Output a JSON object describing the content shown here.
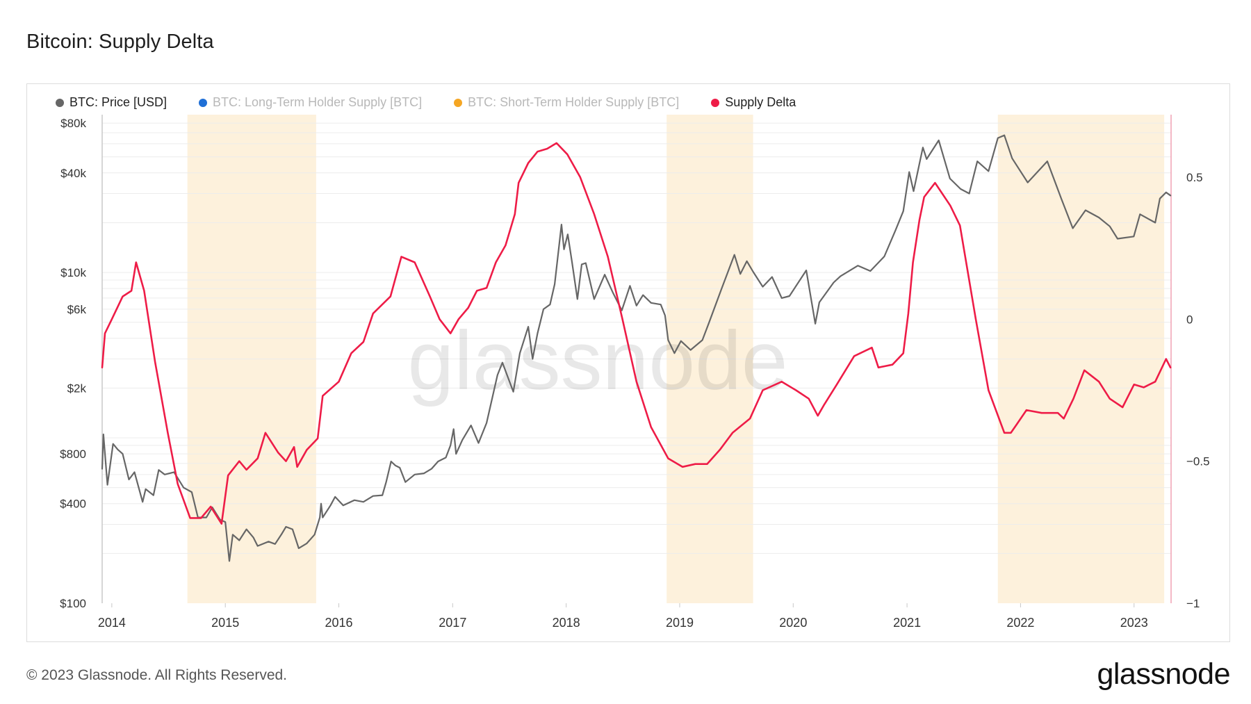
{
  "page": {
    "title": "Bitcoin: Supply Delta",
    "footer": "© 2023 Glassnode. All Rights Reserved.",
    "logo": "glassnode",
    "watermark": "glassnode"
  },
  "chart_data": {
    "type": "line",
    "title": "Bitcoin: Supply Delta",
    "x_ticks": [
      "2014",
      "2015",
      "2016",
      "2017",
      "2018",
      "2019",
      "2020",
      "2021",
      "2022",
      "2023"
    ],
    "x_range": [
      "2013-12-01",
      "2023-04-30"
    ],
    "y_left": {
      "scale": "log",
      "range": [
        100,
        90000
      ],
      "ticks": [
        {
          "value": 100,
          "label": "$100"
        },
        {
          "value": 400,
          "label": "$400"
        },
        {
          "value": 800,
          "label": "$800"
        },
        {
          "value": 2000,
          "label": "$2k"
        },
        {
          "value": 6000,
          "label": "$6k"
        },
        {
          "value": 10000,
          "label": "$10k"
        },
        {
          "value": 40000,
          "label": "$40k"
        },
        {
          "value": 80000,
          "label": "$80k"
        }
      ]
    },
    "y_right": {
      "scale": "linear",
      "range": [
        -1,
        0.72
      ],
      "ticks": [
        {
          "value": 0.5,
          "label": "0.5"
        },
        {
          "value": 0,
          "label": "0"
        },
        {
          "value": -0.5,
          "label": "−0.5"
        },
        {
          "value": -1,
          "label": "−1"
        }
      ]
    },
    "legend_position": "top-left",
    "grid": true,
    "shaded_periods": [
      {
        "start": "2014-09-01",
        "end": "2015-10-20"
      },
      {
        "start": "2018-11-20",
        "end": "2019-08-25"
      },
      {
        "start": "2021-10-20",
        "end": "2023-04-08"
      }
    ],
    "series": [
      {
        "name": "BTC: Price [USD]",
        "color": "#666666",
        "axis": "left",
        "visible": true,
        "points": [
          [
            "2013-12-01",
            650
          ],
          [
            "2013-12-05",
            1050
          ],
          [
            "2013-12-18",
            520
          ],
          [
            "2014-01-05",
            920
          ],
          [
            "2014-01-20",
            850
          ],
          [
            "2014-02-05",
            800
          ],
          [
            "2014-02-25",
            560
          ],
          [
            "2014-03-15",
            620
          ],
          [
            "2014-04-10",
            410
          ],
          [
            "2014-04-20",
            490
          ],
          [
            "2014-05-15",
            450
          ],
          [
            "2014-06-01",
            640
          ],
          [
            "2014-06-20",
            600
          ],
          [
            "2014-07-20",
            620
          ],
          [
            "2014-08-20",
            500
          ],
          [
            "2014-09-15",
            470
          ],
          [
            "2014-10-05",
            330
          ],
          [
            "2014-11-01",
            330
          ],
          [
            "2014-11-20",
            380
          ],
          [
            "2014-12-15",
            320
          ],
          [
            "2015-01-01",
            310
          ],
          [
            "2015-01-14",
            180
          ],
          [
            "2015-01-25",
            260
          ],
          [
            "2015-02-15",
            240
          ],
          [
            "2015-03-10",
            280
          ],
          [
            "2015-04-01",
            250
          ],
          [
            "2015-04-15",
            222
          ],
          [
            "2015-05-20",
            236
          ],
          [
            "2015-06-10",
            228
          ],
          [
            "2015-07-01",
            262
          ],
          [
            "2015-07-15",
            290
          ],
          [
            "2015-08-05",
            280
          ],
          [
            "2015-08-25",
            215
          ],
          [
            "2015-09-20",
            230
          ],
          [
            "2015-10-15",
            260
          ],
          [
            "2015-11-01",
            330
          ],
          [
            "2015-11-05",
            400
          ],
          [
            "2015-11-10",
            330
          ],
          [
            "2015-12-05",
            390
          ],
          [
            "2015-12-20",
            440
          ],
          [
            "2016-01-15",
            390
          ],
          [
            "2016-02-20",
            420
          ],
          [
            "2016-03-20",
            410
          ],
          [
            "2016-04-20",
            445
          ],
          [
            "2016-05-20",
            450
          ],
          [
            "2016-06-01",
            540
          ],
          [
            "2016-06-17",
            720
          ],
          [
            "2016-07-01",
            680
          ],
          [
            "2016-07-15",
            660
          ],
          [
            "2016-08-02",
            540
          ],
          [
            "2016-09-01",
            600
          ],
          [
            "2016-10-01",
            610
          ],
          [
            "2016-10-25",
            650
          ],
          [
            "2016-11-15",
            720
          ],
          [
            "2016-12-10",
            760
          ],
          [
            "2016-12-25",
            900
          ],
          [
            "2017-01-04",
            1130
          ],
          [
            "2017-01-12",
            800
          ],
          [
            "2017-02-01",
            970
          ],
          [
            "2017-03-01",
            1190
          ],
          [
            "2017-03-25",
            930
          ],
          [
            "2017-04-20",
            1230
          ],
          [
            "2017-05-25",
            2400
          ],
          [
            "2017-06-10",
            2850
          ],
          [
            "2017-07-15",
            1900
          ],
          [
            "2017-08-05",
            3250
          ],
          [
            "2017-09-01",
            4700
          ],
          [
            "2017-09-15",
            3000
          ],
          [
            "2017-10-01",
            4300
          ],
          [
            "2017-10-20",
            6000
          ],
          [
            "2017-11-10",
            6400
          ],
          [
            "2017-11-25",
            8500
          ],
          [
            "2017-12-17",
            19500
          ],
          [
            "2017-12-25",
            13800
          ],
          [
            "2018-01-06",
            17000
          ],
          [
            "2018-01-20",
            11500
          ],
          [
            "2018-02-06",
            6900
          ],
          [
            "2018-02-20",
            11200
          ],
          [
            "2018-03-05",
            11400
          ],
          [
            "2018-04-01",
            6900
          ],
          [
            "2018-05-05",
            9700
          ],
          [
            "2018-06-01",
            7500
          ],
          [
            "2018-06-29",
            5900
          ],
          [
            "2018-07-25",
            8300
          ],
          [
            "2018-08-15",
            6300
          ],
          [
            "2018-09-05",
            7300
          ],
          [
            "2018-10-01",
            6550
          ],
          [
            "2018-11-01",
            6400
          ],
          [
            "2018-11-15",
            5500
          ],
          [
            "2018-11-25",
            3900
          ],
          [
            "2018-12-15",
            3250
          ],
          [
            "2019-01-05",
            3850
          ],
          [
            "2019-02-05",
            3400
          ],
          [
            "2019-03-15",
            3900
          ],
          [
            "2019-04-05",
            4950
          ],
          [
            "2019-05-15",
            7900
          ],
          [
            "2019-06-26",
            12800
          ],
          [
            "2019-07-15",
            9800
          ],
          [
            "2019-08-05",
            11700
          ],
          [
            "2019-08-25",
            10100
          ],
          [
            "2019-09-25",
            8200
          ],
          [
            "2019-10-25",
            9400
          ],
          [
            "2019-11-25",
            7000
          ],
          [
            "2019-12-20",
            7200
          ],
          [
            "2020-02-12",
            10300
          ],
          [
            "2020-03-12",
            4900
          ],
          [
            "2020-03-25",
            6600
          ],
          [
            "2020-05-10",
            8700
          ],
          [
            "2020-06-01",
            9500
          ],
          [
            "2020-07-27",
            11000
          ],
          [
            "2020-09-05",
            10200
          ],
          [
            "2020-10-20",
            12500
          ],
          [
            "2020-11-25",
            18000
          ],
          [
            "2020-12-20",
            23500
          ],
          [
            "2021-01-08",
            40500
          ],
          [
            "2021-01-22",
            31000
          ],
          [
            "2021-02-21",
            57000
          ],
          [
            "2021-03-05",
            48500
          ],
          [
            "2021-04-13",
            63000
          ],
          [
            "2021-05-19",
            37000
          ],
          [
            "2021-06-22",
            32000
          ],
          [
            "2021-07-20",
            30000
          ],
          [
            "2021-08-15",
            47000
          ],
          [
            "2021-09-20",
            41000
          ],
          [
            "2021-10-20",
            65000
          ],
          [
            "2021-11-10",
            67500
          ],
          [
            "2021-12-05",
            49000
          ],
          [
            "2022-01-24",
            35000
          ],
          [
            "2022-03-28",
            47000
          ],
          [
            "2022-05-12",
            28000
          ],
          [
            "2022-06-18",
            18500
          ],
          [
            "2022-07-29",
            23800
          ],
          [
            "2022-09-10",
            21500
          ],
          [
            "2022-10-15",
            19000
          ],
          [
            "2022-11-09",
            16000
          ],
          [
            "2022-12-31",
            16500
          ],
          [
            "2023-01-20",
            22500
          ],
          [
            "2023-03-10",
            20000
          ],
          [
            "2023-03-25",
            28000
          ],
          [
            "2023-04-14",
            30500
          ],
          [
            "2023-04-28",
            29200
          ]
        ]
      },
      {
        "name": "BTC: Long-Term Holder Supply [BTC]",
        "color": "#1f6fd6",
        "axis": "right",
        "visible": false,
        "points": []
      },
      {
        "name": "BTC: Short-Term Holder Supply [BTC]",
        "color": "#f5a623",
        "axis": "right",
        "visible": false,
        "points": []
      },
      {
        "name": "Supply Delta",
        "color": "#ee1c47",
        "axis": "right",
        "visible": true,
        "points": [
          [
            "2013-12-01",
            -0.17
          ],
          [
            "2013-12-10",
            -0.05
          ],
          [
            "2014-01-01",
            0.0
          ],
          [
            "2014-02-05",
            0.08
          ],
          [
            "2014-03-05",
            0.1
          ],
          [
            "2014-03-20",
            0.2
          ],
          [
            "2014-04-15",
            0.1
          ],
          [
            "2014-05-20",
            -0.15
          ],
          [
            "2014-06-30",
            -0.4
          ],
          [
            "2014-08-01",
            -0.58
          ],
          [
            "2014-09-10",
            -0.7
          ],
          [
            "2014-10-15",
            -0.7
          ],
          [
            "2014-11-15",
            -0.66
          ],
          [
            "2014-12-20",
            -0.72
          ],
          [
            "2015-01-10",
            -0.55
          ],
          [
            "2015-02-15",
            -0.5
          ],
          [
            "2015-03-10",
            -0.53
          ],
          [
            "2015-04-15",
            -0.49
          ],
          [
            "2015-05-10",
            -0.4
          ],
          [
            "2015-06-20",
            -0.47
          ],
          [
            "2015-07-15",
            -0.5
          ],
          [
            "2015-08-10",
            -0.45
          ],
          [
            "2015-08-20",
            -0.52
          ],
          [
            "2015-09-20",
            -0.46
          ],
          [
            "2015-10-25",
            -0.42
          ],
          [
            "2015-11-10",
            -0.27
          ],
          [
            "2016-01-01",
            -0.22
          ],
          [
            "2016-02-10",
            -0.12
          ],
          [
            "2016-03-20",
            -0.08
          ],
          [
            "2016-04-20",
            0.02
          ],
          [
            "2016-06-15",
            0.08
          ],
          [
            "2016-07-20",
            0.22
          ],
          [
            "2016-09-01",
            0.2
          ],
          [
            "2016-10-20",
            0.08
          ],
          [
            "2016-11-20",
            0.0
          ],
          [
            "2016-12-25",
            -0.05
          ],
          [
            "2017-01-20",
            0.0
          ],
          [
            "2017-02-20",
            0.04
          ],
          [
            "2017-03-20",
            0.1
          ],
          [
            "2017-04-20",
            0.11
          ],
          [
            "2017-05-20",
            0.2
          ],
          [
            "2017-06-20",
            0.26
          ],
          [
            "2017-07-20",
            0.37
          ],
          [
            "2017-08-01",
            0.48
          ],
          [
            "2017-09-01",
            0.55
          ],
          [
            "2017-10-01",
            0.59
          ],
          [
            "2017-11-01",
            0.6
          ],
          [
            "2017-12-01",
            0.62
          ],
          [
            "2018-01-05",
            0.58
          ],
          [
            "2018-02-15",
            0.5
          ],
          [
            "2018-04-01",
            0.37
          ],
          [
            "2018-05-15",
            0.22
          ],
          [
            "2018-07-01",
            0.0
          ],
          [
            "2018-08-15",
            -0.22
          ],
          [
            "2018-10-01",
            -0.38
          ],
          [
            "2018-11-25",
            -0.49
          ],
          [
            "2019-01-10",
            -0.52
          ],
          [
            "2019-02-20",
            -0.51
          ],
          [
            "2019-03-30",
            -0.51
          ],
          [
            "2019-05-10",
            -0.46
          ],
          [
            "2019-06-20",
            -0.4
          ],
          [
            "2019-08-15",
            -0.35
          ],
          [
            "2019-09-25",
            -0.25
          ],
          [
            "2019-11-25",
            -0.22
          ],
          [
            "2020-01-10",
            -0.25
          ],
          [
            "2020-02-20",
            -0.28
          ],
          [
            "2020-03-20",
            -0.34
          ],
          [
            "2020-04-10",
            -0.3
          ],
          [
            "2020-05-20",
            -0.23
          ],
          [
            "2020-07-15",
            -0.13
          ],
          [
            "2020-09-10",
            -0.1
          ],
          [
            "2020-10-01",
            -0.17
          ],
          [
            "2020-11-15",
            -0.16
          ],
          [
            "2020-12-20",
            -0.12
          ],
          [
            "2021-01-05",
            0.02
          ],
          [
            "2021-01-20",
            0.2
          ],
          [
            "2021-02-10",
            0.35
          ],
          [
            "2021-02-25",
            0.43
          ],
          [
            "2021-04-01",
            0.48
          ],
          [
            "2021-05-20",
            0.4
          ],
          [
            "2021-06-20",
            0.33
          ],
          [
            "2021-08-10",
            0.0
          ],
          [
            "2021-09-20",
            -0.25
          ],
          [
            "2021-11-10",
            -0.4
          ],
          [
            "2021-12-01",
            -0.4
          ],
          [
            "2021-12-20",
            -0.37
          ],
          [
            "2022-01-20",
            -0.32
          ],
          [
            "2022-03-10",
            -0.33
          ],
          [
            "2022-05-01",
            -0.33
          ],
          [
            "2022-05-20",
            -0.35
          ],
          [
            "2022-06-20",
            -0.28
          ],
          [
            "2022-07-25",
            -0.18
          ],
          [
            "2022-09-10",
            -0.22
          ],
          [
            "2022-10-15",
            -0.28
          ],
          [
            "2022-11-25",
            -0.31
          ],
          [
            "2023-01-01",
            -0.23
          ],
          [
            "2023-02-01",
            -0.24
          ],
          [
            "2023-03-10",
            -0.22
          ],
          [
            "2023-04-14",
            -0.14
          ],
          [
            "2023-04-28",
            -0.17
          ]
        ]
      }
    ]
  }
}
